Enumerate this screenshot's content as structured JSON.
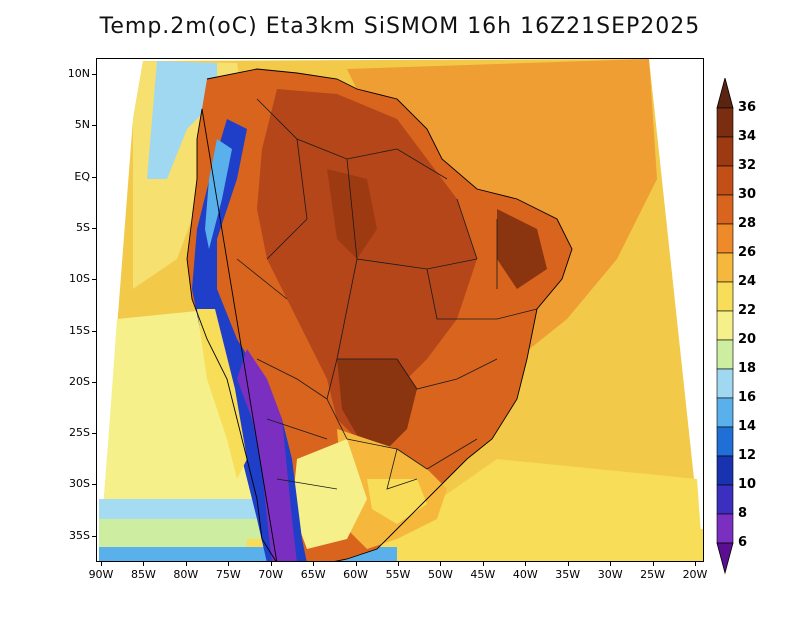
{
  "title": "Temp.2m(oC) Eta3km SiSMOM 16h 16Z21SEP2025",
  "lat_labels": [
    "10N",
    "5N",
    "EQ",
    "5S",
    "10S",
    "15S",
    "20S",
    "25S",
    "30S",
    "35S"
  ],
  "lon_labels": [
    "90W",
    "85W",
    "80W",
    "75W",
    "70W",
    "65W",
    "60W",
    "55W",
    "50W",
    "45W",
    "40W",
    "35W",
    "30W",
    "25W",
    "20W"
  ],
  "colorbar": {
    "labels": [
      "36",
      "34",
      "32",
      "30",
      "28",
      "26",
      "24",
      "22",
      "20",
      "18",
      "16",
      "14",
      "12",
      "10",
      "8",
      "6"
    ],
    "colors": [
      "#7a2d10",
      "#9e3a12",
      "#c24f17",
      "#d8641e",
      "#ee8a2a",
      "#f5b83d",
      "#f7dd58",
      "#f5f08a",
      "#cdeea0",
      "#9fd8f0",
      "#5ab0ea",
      "#1f6fd6",
      "#1832b0",
      "#3b2fc0",
      "#7a2fc0",
      "#5a0f90"
    ]
  },
  "map_colors": {
    "ocean_north_pacific": "#7fc8ec",
    "ocean_tropical_atlantic": "#f5b83d",
    "ocean_south_atlantic": "#f2c948",
    "land_hot": "#d8641e",
    "land_very_hot": "#9e3a12",
    "andes_cold": "#1f3fc8",
    "andes_very_cold": "#7a2fc0",
    "pacific_south": "#a6dcf2",
    "patagonia": "#5ab0ea"
  }
}
